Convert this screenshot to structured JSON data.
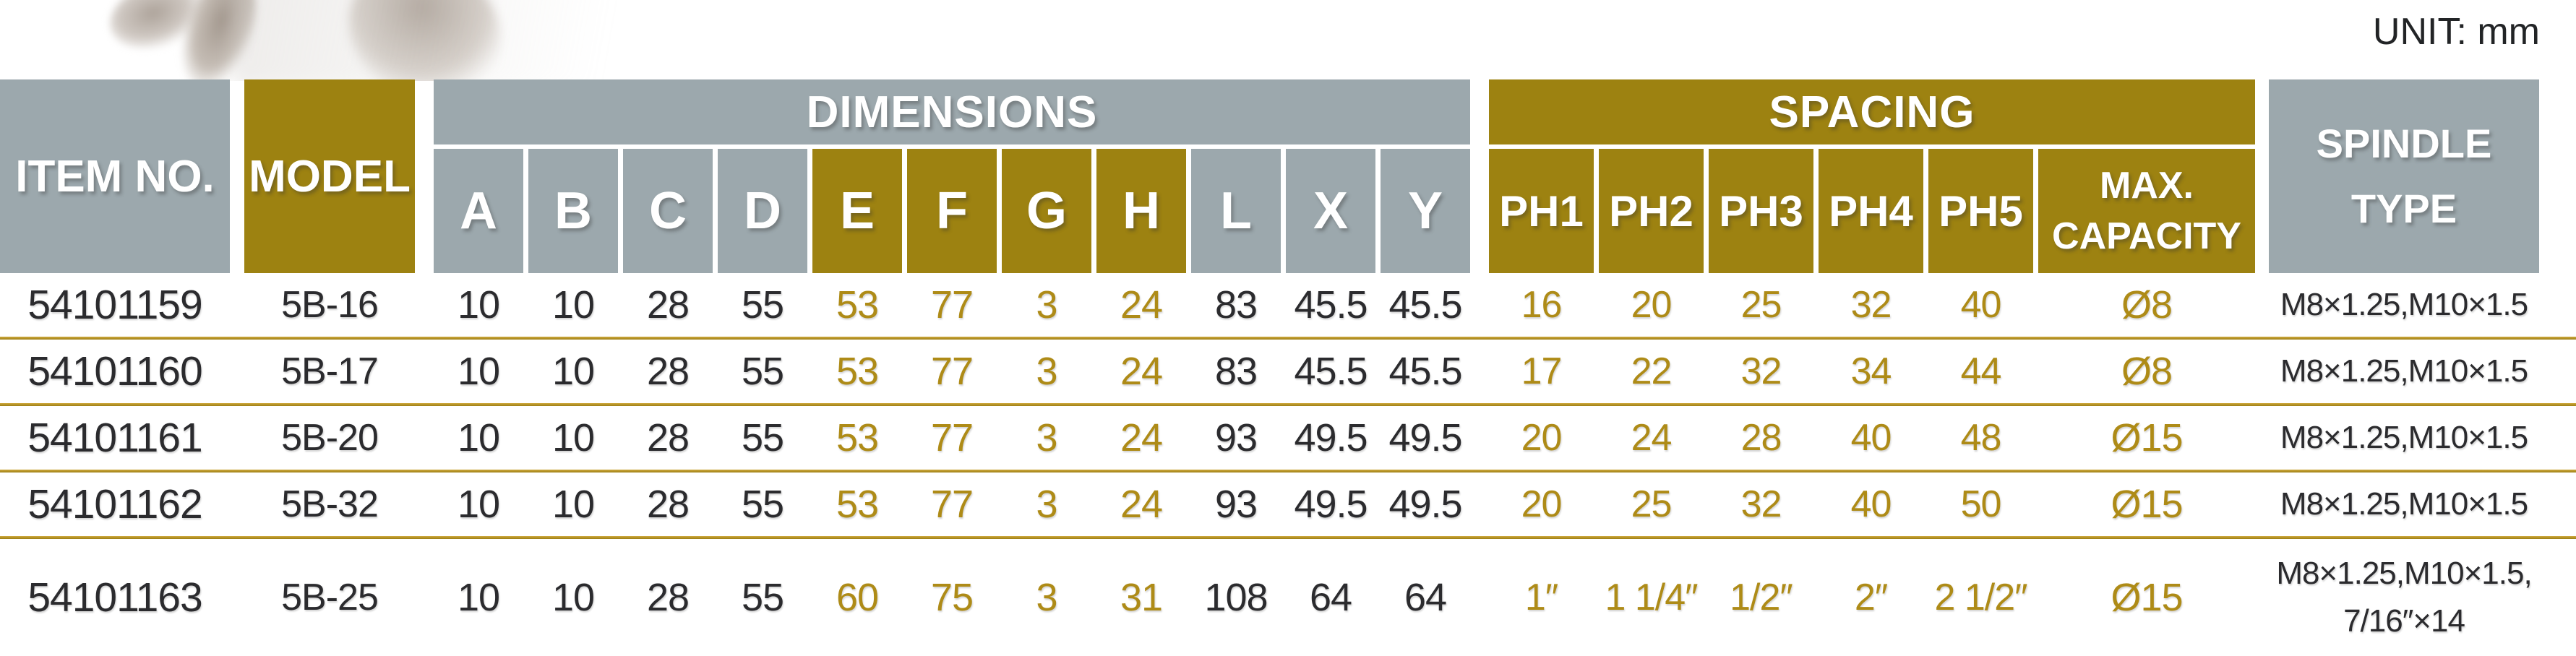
{
  "page": {
    "unit_label": "UNIT: mm"
  },
  "colors": {
    "header_gray": "#9ca8ad",
    "header_gold": "#9d8211",
    "data_dark": "#2b2b2e",
    "data_gold": "#ae8b17",
    "separator_gold": "#b5922a",
    "background": "#ffffff"
  },
  "header": {
    "item_no": "ITEM NO.",
    "model": "MODEL",
    "dimensions_group": "DIMENSIONS",
    "spacing_group": "SPACING",
    "max_capacity": "MAX.\nCAPACITY",
    "spindle_type": "SPINDLE\nTYPE",
    "dim_cols": [
      "A",
      "B",
      "C",
      "D",
      "E",
      "F",
      "G",
      "H",
      "L",
      "X",
      "Y"
    ],
    "spacing_cols": [
      "PH1",
      "PH2",
      "PH3",
      "PH4",
      "PH5"
    ]
  },
  "rows": [
    {
      "item_no": "54101159",
      "model": "5B-16",
      "dims": [
        "10",
        "10",
        "28",
        "55",
        "53",
        "77",
        "3",
        "24",
        "83",
        "45.5",
        "45.5"
      ],
      "spacing": [
        "16",
        "20",
        "25",
        "32",
        "40"
      ],
      "max_capacity": "Ø8",
      "spindle_type": "M8×1.25,M10×1.5"
    },
    {
      "item_no": "54101160",
      "model": "5B-17",
      "dims": [
        "10",
        "10",
        "28",
        "55",
        "53",
        "77",
        "3",
        "24",
        "83",
        "45.5",
        "45.5"
      ],
      "spacing": [
        "17",
        "22",
        "32",
        "34",
        "44"
      ],
      "max_capacity": "Ø8",
      "spindle_type": "M8×1.25,M10×1.5"
    },
    {
      "item_no": "54101161",
      "model": "5B-20",
      "dims": [
        "10",
        "10",
        "28",
        "55",
        "53",
        "77",
        "3",
        "24",
        "93",
        "49.5",
        "49.5"
      ],
      "spacing": [
        "20",
        "24",
        "28",
        "40",
        "48"
      ],
      "max_capacity": "Ø15",
      "spindle_type": "M8×1.25,M10×1.5"
    },
    {
      "item_no": "54101162",
      "model": "5B-32",
      "dims": [
        "10",
        "10",
        "28",
        "55",
        "53",
        "77",
        "3",
        "24",
        "93",
        "49.5",
        "49.5"
      ],
      "spacing": [
        "20",
        "25",
        "32",
        "40",
        "50"
      ],
      "max_capacity": "Ø15",
      "spindle_type": "M8×1.25,M10×1.5"
    },
    {
      "item_no": "54101163",
      "model": "5B-25",
      "dims": [
        "10",
        "10",
        "28",
        "55",
        "60",
        "75",
        "3",
        "31",
        "108",
        "64",
        "64"
      ],
      "spacing": [
        "1″",
        "1 1/4″",
        "1/2″",
        "2″",
        "2 1/2″"
      ],
      "max_capacity": "Ø15",
      "spindle_type": "M8×1.25,M10×1.5,\n7/16″×14"
    }
  ]
}
